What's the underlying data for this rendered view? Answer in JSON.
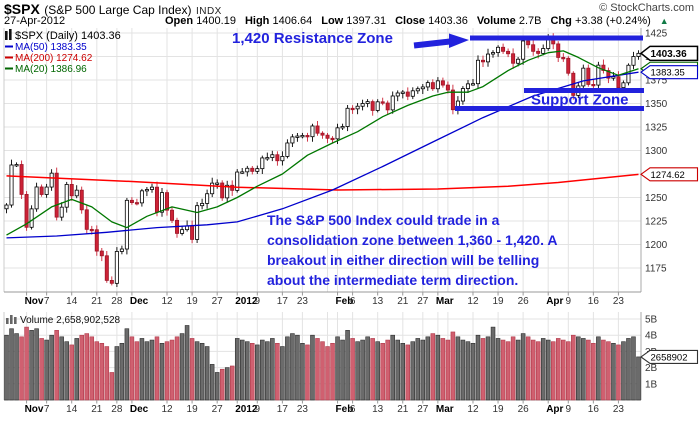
{
  "header": {
    "symbol": "$SPX",
    "name": "(S&P 500 Large Cap Index)",
    "exchange": "INDX",
    "date": "27-Apr-2012",
    "quote": [
      {
        "label": "Open",
        "value": "1400.19"
      },
      {
        "label": "High",
        "value": "1406.64"
      },
      {
        "label": "Low",
        "value": "1397.31"
      },
      {
        "label": "Close",
        "value": "1403.36"
      },
      {
        "label": "Volume",
        "value": "2.7B"
      },
      {
        "label": "Chg",
        "value": "+3.38 (+0.24%)"
      }
    ],
    "up_arrow": "▲",
    "copyright": "© StockCharts.com"
  },
  "legend": {
    "title": "$SPX (Daily) 1403.36",
    "items": [
      {
        "label": "MA(50) 1383.35",
        "color": "#0000cc"
      },
      {
        "label": "MA(200) 1274.62",
        "color": "#cc0000"
      },
      {
        "label": "MA(20) 1386.96",
        "color": "#006600"
      }
    ]
  },
  "volume_legend": {
    "label": "Volume 2,658,902,528"
  },
  "annotations": {
    "resistance_label": "1,420 Resistance Zone",
    "support_label": "Support Zone",
    "note_lines": [
      "The S&P 500 Index could trade in a",
      "consolidation zone between 1,360 - 1,420. A",
      "breakout in either direction will be telling",
      "about the intermediate term direction."
    ],
    "color": "#2222dd",
    "resistance_price": 1420,
    "support_zone": [
      1345,
      1364
    ]
  },
  "axes": {
    "price_ticks": [
      1425,
      1400,
      1375,
      1350,
      1325,
      1300,
      1275,
      1250,
      1225,
      1200,
      1175
    ],
    "price_tags": [
      {
        "text": "1386.96",
        "price": 1386.96,
        "color": "#006600",
        "bold": false
      },
      {
        "text": "1383.35",
        "price": 1383.35,
        "color": "#0000cc",
        "bold": false
      },
      {
        "text": "1403.36",
        "price": 1403.36,
        "color": "#000000",
        "bold": true
      },
      {
        "text": "1274.62",
        "price": 1274.62,
        "color": "#cc0000",
        "bold": false
      }
    ],
    "volume_ticks": [
      {
        "v": 1,
        "label": "1B"
      },
      {
        "v": 2,
        "label": "2B"
      },
      {
        "v": 3,
        "label": "3B"
      },
      {
        "v": 4,
        "label": "4B"
      },
      {
        "v": 5,
        "label": "5B"
      }
    ],
    "volume_tag": {
      "text": "2658902",
      "v": 2.658
    },
    "date_labels": [
      {
        "t": "Nov",
        "i": 4,
        "b": true
      },
      {
        "t": "7",
        "i": 8
      },
      {
        "t": "14",
        "i": 13
      },
      {
        "t": "21",
        "i": 18
      },
      {
        "t": "28",
        "i": 22
      },
      {
        "t": "Dec",
        "i": 25,
        "b": true
      },
      {
        "t": "12",
        "i": 32
      },
      {
        "t": "19",
        "i": 37
      },
      {
        "t": "27",
        "i": 42
      },
      {
        "t": "2012",
        "i": 46,
        "b": true
      },
      {
        "t": "9",
        "i": 50
      },
      {
        "t": "17",
        "i": 55
      },
      {
        "t": "23",
        "i": 59
      },
      {
        "t": "Feb",
        "i": 66,
        "b": true
      },
      {
        "t": "6",
        "i": 69
      },
      {
        "t": "13",
        "i": 74
      },
      {
        "t": "21",
        "i": 79
      },
      {
        "t": "27",
        "i": 83
      },
      {
        "t": "Mar",
        "i": 86,
        "b": true
      },
      {
        "t": "12",
        "i": 93
      },
      {
        "t": "19",
        "i": 98
      },
      {
        "t": "26",
        "i": 103
      },
      {
        "t": "Apr",
        "i": 108,
        "b": true
      },
      {
        "t": "9",
        "i": 112
      },
      {
        "t": "16",
        "i": 117
      },
      {
        "t": "23",
        "i": 122
      }
    ],
    "extra_grid_i": [
      64,
      88
    ]
  },
  "colors": {
    "candle_up_fill": "#ffffff",
    "candle_up_stroke": "#000000",
    "candle_down": "#cc2236",
    "candle_down_stroke": "#9d1628",
    "vol_up": "#6b6b6b",
    "vol_up_stroke": "#2e2e2e",
    "vol_down": "#d06070",
    "vol_down_stroke": "#b03a4a",
    "ma50": "#0000cc",
    "ma200": "#ff0000",
    "ma20": "#007700",
    "grid": "#e3e3e3",
    "frame": "#999999",
    "annotation": "#2222dd"
  },
  "chart_data": {
    "type": "candlestick",
    "title": "$SPX S&P 500 Large Cap Index, Daily, late Oct 2011 - 27 Apr 2012",
    "ylim": [
      1160,
      1430
    ],
    "volume_ylim_B": [
      0,
      5.4
    ],
    "last_close": 1403.36,
    "closes": [
      1242.0,
      1284.6,
      1285.1,
      1253.3,
      1218.3,
      1237.9,
      1261.2,
      1253.2,
      1261.1,
      1275.9,
      1229.1,
      1239.7,
      1263.9,
      1251.8,
      1257.8,
      1236.9,
      1216.1,
      1215.7,
      1193.0,
      1188.0,
      1161.8,
      1158.7,
      1192.6,
      1195.2,
      1247.0,
      1244.6,
      1244.3,
      1257.1,
      1258.5,
      1261.0,
      1234.4,
      1255.2,
      1236.5,
      1225.7,
      1211.8,
      1215.8,
      1219.7,
      1205.4,
      1241.3,
      1243.7,
      1254.0,
      1265.3,
      1265.4,
      1249.6,
      1263.0,
      1257.6,
      1277.1,
      1277.3,
      1281.1,
      1277.8,
      1280.7,
      1292.1,
      1292.5,
      1295.5,
      1289.1,
      1293.7,
      1308.0,
      1314.5,
      1315.4,
      1316.0,
      1314.7,
      1326.1,
      1318.4,
      1316.3,
      1313.0,
      1312.4,
      1324.1,
      1325.5,
      1344.9,
      1344.3,
      1347.1,
      1350.0,
      1352.0,
      1342.6,
      1351.8,
      1350.5,
      1343.2,
      1358.0,
      1361.2,
      1362.2,
      1357.7,
      1363.5,
      1365.7,
      1367.6,
      1372.2,
      1365.7,
      1374.1,
      1369.6,
      1364.3,
      1343.4,
      1352.6,
      1365.9,
      1370.9,
      1371.1,
      1396.0,
      1394.3,
      1402.6,
      1404.2,
      1409.8,
      1405.5,
      1402.9,
      1392.8,
      1397.1,
      1416.5,
      1412.5,
      1405.5,
      1403.3,
      1408.5,
      1419.0,
      1413.4,
      1399.0,
      1398.1,
      1382.2,
      1358.6,
      1368.7,
      1387.6,
      1370.3,
      1369.6,
      1390.8,
      1385.1,
      1376.9,
      1378.5,
      1366.9,
      1372.0,
      1390.7,
      1400.0,
      1403.36
    ],
    "volumes_B": [
      4.0,
      4.4,
      4.1,
      3.9,
      4.5,
      4.3,
      4.4,
      3.8,
      3.7,
      4.0,
      4.3,
      3.9,
      3.6,
      3.4,
      3.8,
      4.0,
      4.1,
      3.9,
      3.6,
      3.5,
      3.3,
      1.7,
      3.3,
      3.5,
      4.4,
      3.9,
      3.6,
      3.8,
      3.6,
      3.7,
      3.9,
      3.5,
      3.6,
      3.7,
      3.9,
      4.1,
      4.6,
      3.8,
      3.6,
      3.5,
      3.3,
      2.2,
      1.7,
      1.9,
      2.0,
      2.1,
      3.8,
      3.7,
      3.6,
      3.5,
      3.4,
      3.7,
      3.6,
      3.8,
      3.5,
      3.3,
      3.9,
      4.1,
      4.0,
      3.5,
      3.4,
      4.0,
      3.8,
      3.6,
      3.3,
      3.5,
      3.9,
      3.7,
      4.3,
      3.8,
      3.6,
      3.7,
      3.9,
      3.8,
      3.6,
      3.5,
      3.7,
      4.0,
      3.7,
      3.5,
      3.4,
      3.6,
      3.8,
      3.7,
      3.9,
      4.1,
      4.0,
      3.8,
      3.7,
      4.2,
      3.9,
      3.7,
      3.6,
      3.5,
      4.0,
      3.8,
      3.9,
      4.5,
      3.8,
      3.7,
      3.6,
      3.9,
      3.7,
      4.1,
      3.9,
      3.7,
      3.6,
      3.8,
      3.7,
      3.6,
      3.8,
      3.7,
      3.6,
      4.0,
      3.9,
      3.8,
      3.7,
      3.5,
      3.9,
      3.7,
      3.6,
      3.5,
      3.4,
      3.6,
      3.8,
      3.9,
      2.66
    ],
    "ma50": [
      [
        0,
        1207
      ],
      [
        10,
        1209
      ],
      [
        20,
        1213
      ],
      [
        30,
        1218
      ],
      [
        40,
        1221
      ],
      [
        46,
        1224
      ],
      [
        55,
        1238
      ],
      [
        65,
        1258
      ],
      [
        75,
        1283
      ],
      [
        85,
        1309
      ],
      [
        95,
        1335
      ],
      [
        105,
        1358
      ],
      [
        115,
        1374
      ],
      [
        126,
        1383.35
      ]
    ],
    "ma200": [
      [
        0,
        1273
      ],
      [
        25,
        1267
      ],
      [
        46,
        1261
      ],
      [
        66,
        1258
      ],
      [
        86,
        1259
      ],
      [
        100,
        1262
      ],
      [
        110,
        1266
      ],
      [
        126,
        1274.62
      ]
    ],
    "ma20": [
      [
        0,
        1210
      ],
      [
        4,
        1222
      ],
      [
        9,
        1240
      ],
      [
        13,
        1248
      ],
      [
        17,
        1240
      ],
      [
        21,
        1224
      ],
      [
        24,
        1218
      ],
      [
        28,
        1230
      ],
      [
        33,
        1240
      ],
      [
        38,
        1234
      ],
      [
        42,
        1240
      ],
      [
        46,
        1250
      ],
      [
        50,
        1262
      ],
      [
        55,
        1275
      ],
      [
        60,
        1295
      ],
      [
        65,
        1308
      ],
      [
        70,
        1320
      ],
      [
        75,
        1336
      ],
      [
        80,
        1348
      ],
      [
        85,
        1358
      ],
      [
        88,
        1362
      ],
      [
        92,
        1362
      ],
      [
        95,
        1368
      ],
      [
        100,
        1385
      ],
      [
        104,
        1396
      ],
      [
        108,
        1404
      ],
      [
        111,
        1406
      ],
      [
        114,
        1399
      ],
      [
        118,
        1388
      ],
      [
        122,
        1380
      ],
      [
        126,
        1386.96
      ]
    ]
  }
}
